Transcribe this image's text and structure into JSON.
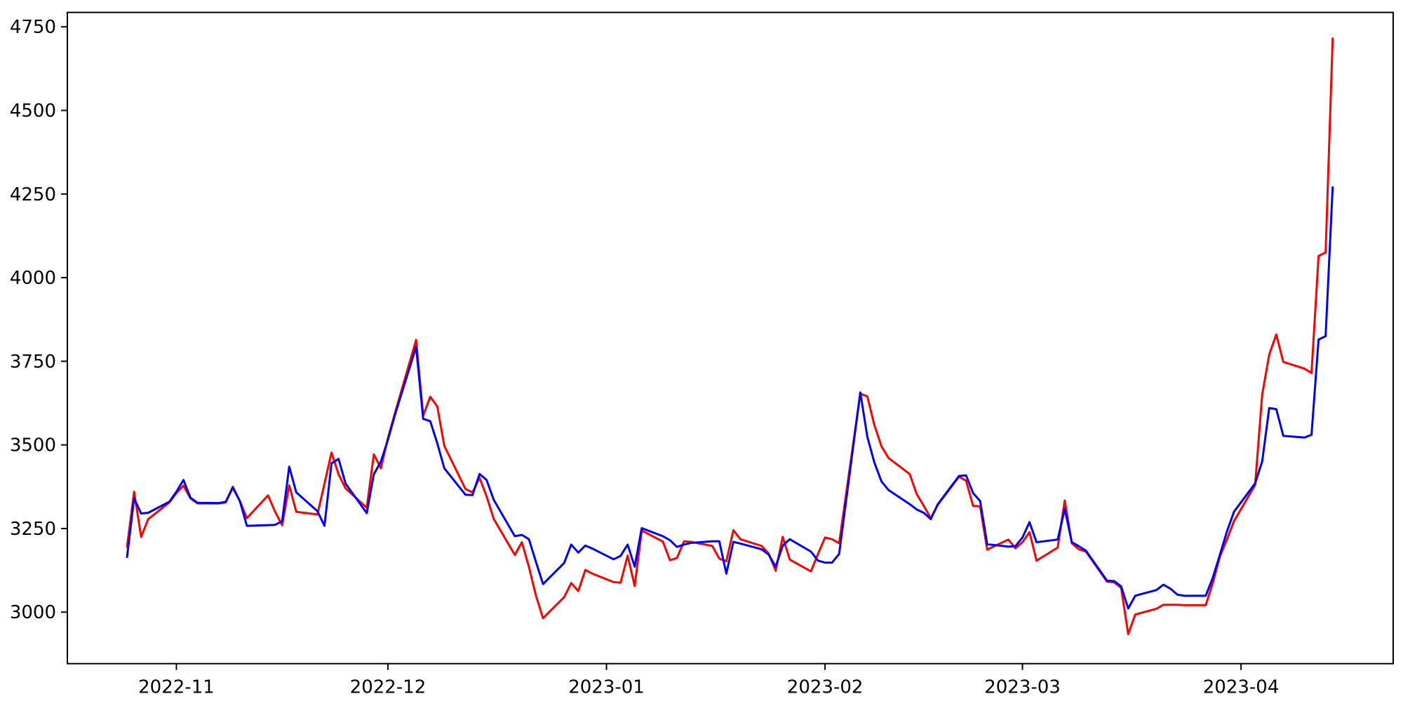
{
  "figure": {
    "background": "#ffffff",
    "spine_color": "#000000",
    "tick_color": "#000000"
  },
  "chart_data": {
    "type": "line",
    "title": "",
    "xlabel": "",
    "ylabel": "",
    "grid": false,
    "legend": "none",
    "xlim": [
      "2022-10-16T12:45:00Z",
      "2023-04-22T14:00:00Z"
    ],
    "ylim": [
      2846,
      4793
    ],
    "y_ticks": [
      3000,
      3250,
      3500,
      3750,
      4000,
      4250,
      4500,
      4750
    ],
    "x_ticks": [
      {
        "date": "2022-11-01T00:00:00Z",
        "label": "2022-11"
      },
      {
        "date": "2022-12-01T00:00:00Z",
        "label": "2022-12"
      },
      {
        "date": "2023-01-01T00:00:00Z",
        "label": "2023-01"
      },
      {
        "date": "2023-02-01T00:00:00Z",
        "label": "2023-02"
      },
      {
        "date": "2023-03-01T00:00:00Z",
        "label": "2023-03"
      },
      {
        "date": "2023-04-01T00:00:00Z",
        "label": "2023-04"
      }
    ],
    "x": [
      "2022-10-25",
      "2022-10-26",
      "2022-10-27",
      "2022-10-28",
      "2022-10-31",
      "2022-11-01",
      "2022-11-02",
      "2022-11-03",
      "2022-11-04",
      "2022-11-07",
      "2022-11-08",
      "2022-11-09",
      "2022-11-10",
      "2022-11-11",
      "2022-11-14",
      "2022-11-15",
      "2022-11-16",
      "2022-11-17",
      "2022-11-18",
      "2022-11-21",
      "2022-11-22",
      "2022-11-23",
      "2022-11-24",
      "2022-11-25",
      "2022-11-28",
      "2022-11-29",
      "2022-11-30",
      "2022-12-01",
      "2022-12-02",
      "2022-12-05",
      "2022-12-06",
      "2022-12-07",
      "2022-12-08",
      "2022-12-09",
      "2022-12-12",
      "2022-12-13",
      "2022-12-14",
      "2022-12-15",
      "2022-12-16",
      "2022-12-19",
      "2022-12-20",
      "2022-12-21",
      "2022-12-22",
      "2022-12-23",
      "2022-12-26",
      "2022-12-27",
      "2022-12-28",
      "2022-12-29",
      "2022-12-30",
      "2023-01-02",
      "2023-01-03",
      "2023-01-04",
      "2023-01-05",
      "2023-01-06",
      "2023-01-09",
      "2023-01-10",
      "2023-01-11",
      "2023-01-12",
      "2023-01-13",
      "2023-01-16",
      "2023-01-17",
      "2023-01-18",
      "2023-01-19",
      "2023-01-20",
      "2023-01-23",
      "2023-01-24",
      "2023-01-25",
      "2023-01-26",
      "2023-01-27",
      "2023-01-30",
      "2023-01-31",
      "2023-02-01",
      "2023-02-02",
      "2023-02-03",
      "2023-02-06",
      "2023-02-07",
      "2023-02-08",
      "2023-02-09",
      "2023-02-10",
      "2023-02-13",
      "2023-02-14",
      "2023-02-15",
      "2023-02-16",
      "2023-02-17",
      "2023-02-20",
      "2023-02-21",
      "2023-02-22",
      "2023-02-23",
      "2023-02-24",
      "2023-02-27",
      "2023-02-28",
      "2023-03-01",
      "2023-03-02",
      "2023-03-03",
      "2023-03-06",
      "2023-03-07",
      "2023-03-08",
      "2023-03-09",
      "2023-03-10",
      "2023-03-13",
      "2023-03-14",
      "2023-03-15",
      "2023-03-16",
      "2023-03-17",
      "2023-03-20",
      "2023-03-21",
      "2023-03-22",
      "2023-03-23",
      "2023-03-24",
      "2023-03-27",
      "2023-03-28",
      "2023-03-29",
      "2023-03-30",
      "2023-03-31",
      "2023-04-03",
      "2023-04-04",
      "2023-04-05",
      "2023-04-06",
      "2023-04-07",
      "2023-04-10",
      "2023-04-11",
      "2023-04-12",
      "2023-04-13",
      "2023-04-14"
    ],
    "series": [
      {
        "name": "red-line",
        "color": "#ff0000",
        "line_width": 3,
        "values": [
          3195,
          3360,
          3225,
          3278,
          3328,
          3356,
          3378,
          3340,
          3325,
          3325,
          3328,
          3375,
          3332,
          3281,
          3349,
          3300,
          3260,
          3379,
          3300,
          3292,
          3384,
          3477,
          3412,
          3370,
          3312,
          3472,
          3430,
          3520,
          3595,
          3814,
          3587,
          3644,
          3615,
          3497,
          3368,
          3358,
          3402,
          3346,
          3279,
          3171,
          3209,
          3135,
          3049,
          2982,
          3045,
          3087,
          3063,
          3126,
          3115,
          3090,
          3088,
          3169,
          3078,
          3244,
          3211,
          3155,
          3162,
          3212,
          3210,
          3198,
          3160,
          3152,
          3245,
          3218,
          3198,
          3175,
          3124,
          3225,
          3157,
          3122,
          3174,
          3223,
          3218,
          3206,
          3653,
          3645,
          3559,
          3496,
          3461,
          3413,
          3353,
          3318,
          3281,
          3321,
          3405,
          3393,
          3318,
          3316,
          3187,
          3217,
          3191,
          3209,
          3239,
          3154,
          3193,
          3334,
          3206,
          3188,
          3181,
          3091,
          3089,
          3073,
          2934,
          2993,
          3010,
          3022,
          3022,
          3022,
          3021,
          3021,
          3087,
          3166,
          3217,
          3272,
          3380,
          3650,
          3770,
          3830,
          3748,
          3728,
          3715,
          4065,
          4075,
          4715
        ]
      },
      {
        "name": "blue-line",
        "color": "#0000ff",
        "line_width": 3,
        "values": [
          3165,
          3340,
          3295,
          3297,
          3330,
          3360,
          3395,
          3342,
          3327,
          3326,
          3330,
          3372,
          3332,
          3258,
          3260,
          3261,
          3272,
          3435,
          3358,
          3302,
          3258,
          3445,
          3458,
          3384,
          3296,
          3412,
          3450,
          3515,
          3590,
          3793,
          3578,
          3571,
          3505,
          3430,
          3351,
          3350,
          3413,
          3395,
          3336,
          3227,
          3231,
          3218,
          3150,
          3084,
          3147,
          3202,
          3178,
          3199,
          3190,
          3158,
          3168,
          3202,
          3136,
          3251,
          3227,
          3215,
          3195,
          3202,
          3207,
          3212,
          3212,
          3115,
          3210,
          3205,
          3188,
          3172,
          3136,
          3199,
          3218,
          3181,
          3154,
          3148,
          3148,
          3174,
          3657,
          3524,
          3447,
          3391,
          3365,
          3323,
          3307,
          3297,
          3278,
          3323,
          3407,
          3409,
          3356,
          3332,
          3203,
          3196,
          3197,
          3223,
          3269,
          3209,
          3217,
          3309,
          3209,
          3197,
          3184,
          3094,
          3093,
          3077,
          3011,
          3049,
          3066,
          3082,
          3070,
          3052,
          3049,
          3049,
          3103,
          3171,
          3241,
          3300,
          3385,
          3450,
          3610,
          3607,
          3527,
          3522,
          3530,
          3815,
          3825,
          4270
        ]
      }
    ]
  }
}
